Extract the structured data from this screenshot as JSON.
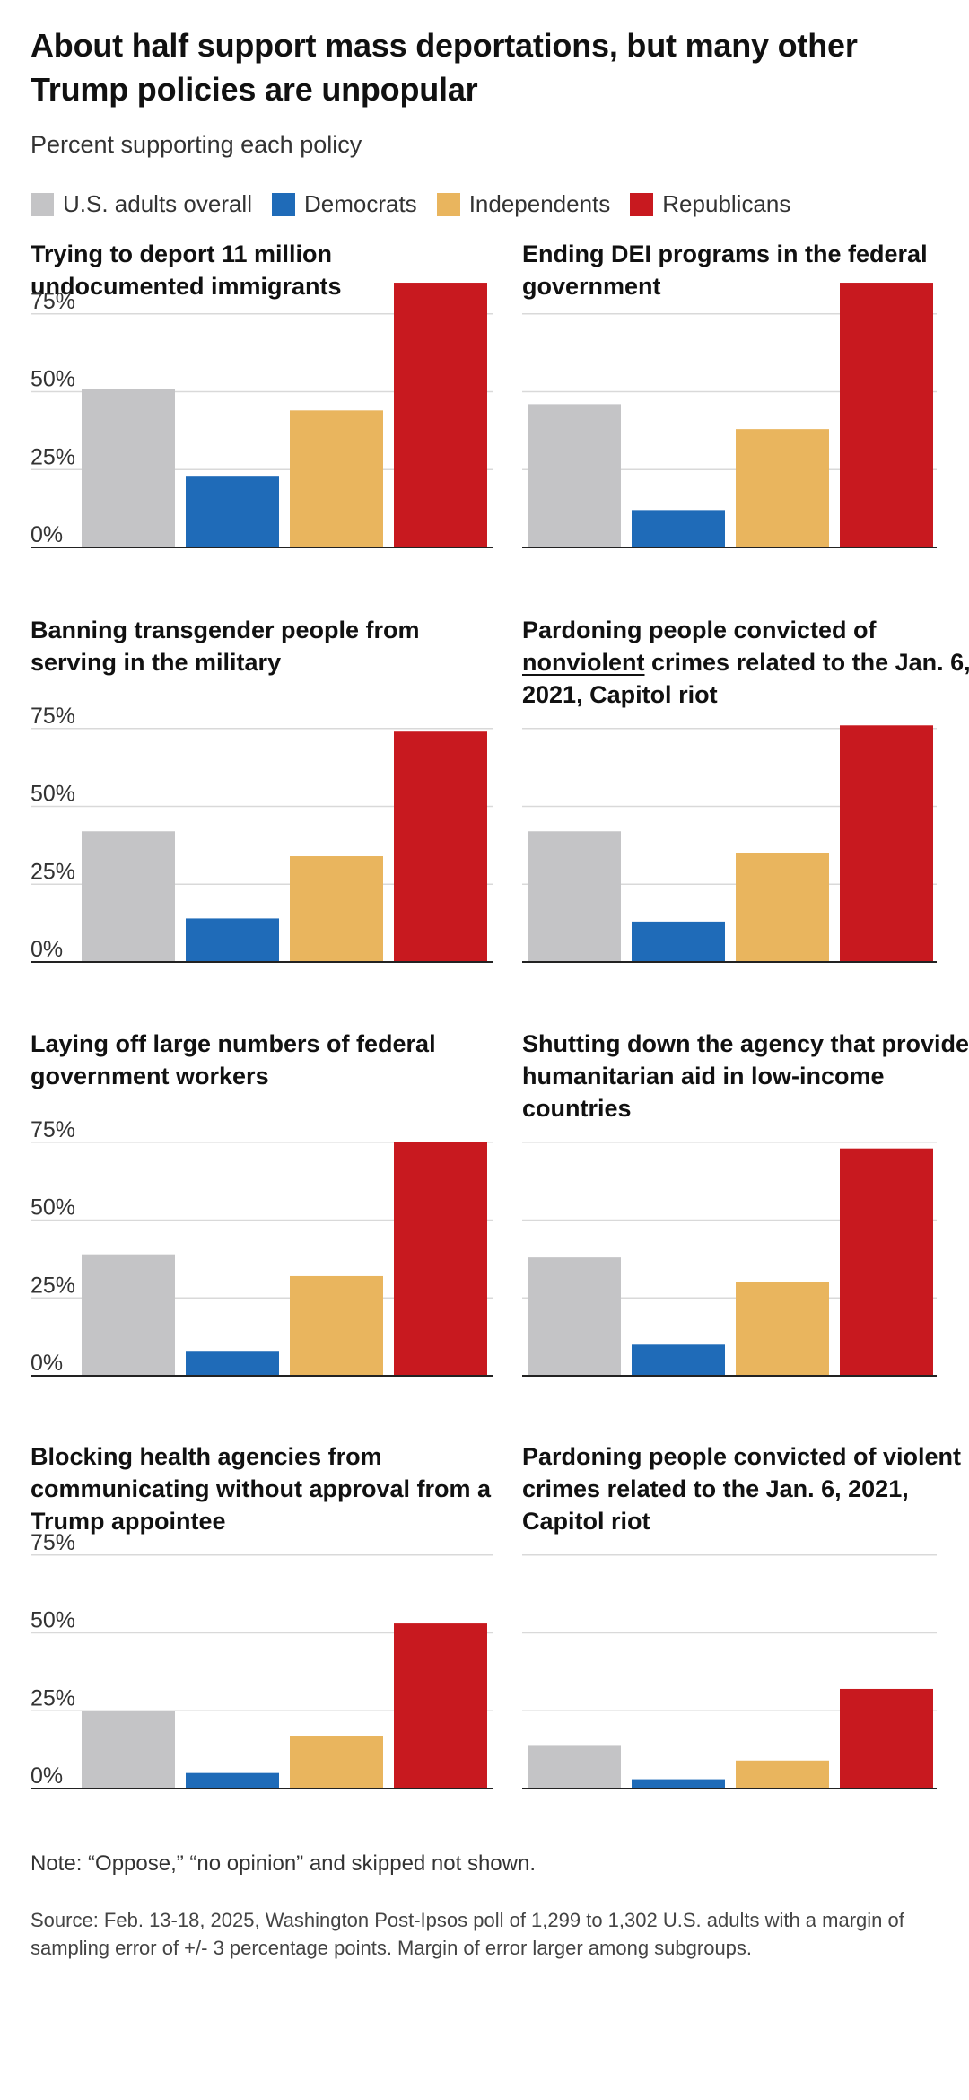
{
  "title": "About half support mass deportations, but many other Trump policies are unpopular",
  "subtitle": "Percent supporting each policy",
  "legend": [
    {
      "label": "U.S. adults overall",
      "color": "#c4c4c6"
    },
    {
      "label": "Democrats",
      "color": "#1f6bb8"
    },
    {
      "label": "Independents",
      "color": "#e9b55e"
    },
    {
      "label": "Republicans",
      "color": "#c8191f"
    }
  ],
  "note": "Note: “Oppose,” “no opinion” and skipped not shown.",
  "source": "Source: Feb. 13-18, 2025, Washington Post-Ipsos poll of 1,299 to 1,302 U.S. adults with a margin of sampling error of +/- 3 percentage points. Margin of error larger among subgroups.",
  "chart_data": [
    {
      "type": "bar",
      "title": "Trying to deport 11 million undocumented immigrants",
      "categories": [
        "U.S. adults overall",
        "Democrats",
        "Independents",
        "Republicans"
      ],
      "values": [
        51,
        23,
        44,
        85
      ],
      "ylim": [
        0,
        75
      ],
      "yticks": [
        "75%",
        "50%",
        "25%",
        "0%"
      ],
      "show_tick_labels": true
    },
    {
      "type": "bar",
      "title": "Ending DEI programs in the federal government",
      "categories": [
        "U.S. adults overall",
        "Democrats",
        "Independents",
        "Republicans"
      ],
      "values": [
        46,
        12,
        38,
        85
      ],
      "ylim": [
        0,
        75
      ],
      "yticks": [
        "75%",
        "50%",
        "25%",
        "0%"
      ],
      "show_tick_labels": false
    },
    {
      "type": "bar",
      "title": "Banning transgender people from serving in the military",
      "categories": [
        "U.S. adults overall",
        "Democrats",
        "Independents",
        "Republicans"
      ],
      "values": [
        42,
        14,
        34,
        74
      ],
      "ylim": [
        0,
        75
      ],
      "yticks": [
        "75%",
        "50%",
        "25%",
        "0%"
      ],
      "show_tick_labels": true
    },
    {
      "type": "bar",
      "title_pre": "Pardoning people convicted of ",
      "title_emph": "nonviolent",
      "title_post": " crimes related to the Jan. 6, 2021, Capitol riot",
      "categories": [
        "U.S. adults overall",
        "Democrats",
        "Independents",
        "Republicans"
      ],
      "values": [
        42,
        13,
        35,
        76
      ],
      "ylim": [
        0,
        75
      ],
      "yticks": [
        "75%",
        "50%",
        "25%",
        "0%"
      ],
      "show_tick_labels": false
    },
    {
      "type": "bar",
      "title": "Laying off large numbers of federal government workers",
      "categories": [
        "U.S. adults overall",
        "Democrats",
        "Independents",
        "Republicans"
      ],
      "values": [
        39,
        8,
        32,
        75
      ],
      "ylim": [
        0,
        75
      ],
      "yticks": [
        "75%",
        "50%",
        "25%",
        "0%"
      ],
      "show_tick_labels": true
    },
    {
      "type": "bar",
      "title": "Shutting down the agency that provides humanitarian aid in low-income countries",
      "categories": [
        "U.S. adults overall",
        "Democrats",
        "Independents",
        "Republicans"
      ],
      "values": [
        38,
        10,
        30,
        73
      ],
      "ylim": [
        0,
        75
      ],
      "yticks": [
        "75%",
        "50%",
        "25%",
        "0%"
      ],
      "show_tick_labels": false
    },
    {
      "type": "bar",
      "title": "Blocking health agencies from communicating without approval from a Trump appointee",
      "categories": [
        "U.S. adults overall",
        "Democrats",
        "Independents",
        "Republicans"
      ],
      "values": [
        25,
        5,
        17,
        53
      ],
      "ylim": [
        0,
        75
      ],
      "yticks": [
        "75%",
        "50%",
        "25%",
        "0%"
      ],
      "show_tick_labels": true
    },
    {
      "type": "bar",
      "title": "Pardoning people convicted of violent crimes related to the Jan. 6, 2021, Capitol riot",
      "categories": [
        "U.S. adults overall",
        "Democrats",
        "Independents",
        "Republicans"
      ],
      "values": [
        14,
        3,
        9,
        32
      ],
      "ylim": [
        0,
        75
      ],
      "yticks": [
        "75%",
        "50%",
        "25%",
        "0%"
      ],
      "show_tick_labels": false
    }
  ]
}
